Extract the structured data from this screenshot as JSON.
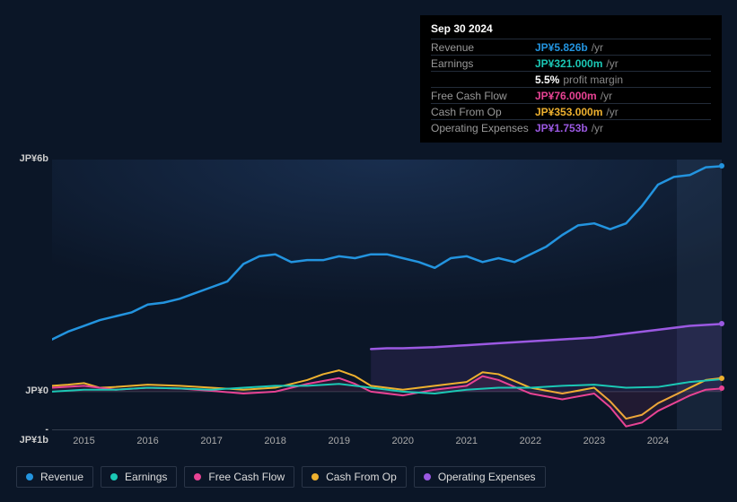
{
  "tooltip": {
    "date": "Sep 30 2024",
    "rows": [
      {
        "label": "Revenue",
        "value": "JP¥5.826b",
        "unit": "/yr",
        "color": "#2394df"
      },
      {
        "label": "Earnings",
        "value": "JP¥321.000m",
        "unit": "/yr",
        "color": "#1bc8b5"
      },
      {
        "label": "",
        "value": "5.5%",
        "unit": "profit margin",
        "color": "#ffffff"
      },
      {
        "label": "Free Cash Flow",
        "value": "JP¥76.000m",
        "unit": "/yr",
        "color": "#e84394"
      },
      {
        "label": "Cash From Op",
        "value": "JP¥353.000m",
        "unit": "/yr",
        "color": "#eeb12f"
      },
      {
        "label": "Operating Expenses",
        "value": "JP¥1.753b",
        "unit": "/yr",
        "color": "#9b59e2"
      }
    ]
  },
  "chart": {
    "type": "line",
    "y_axis": {
      "min": -1,
      "max": 6,
      "labels": [
        {
          "text": "JP¥6b",
          "value": 6
        },
        {
          "text": "JP¥0",
          "value": 0
        },
        {
          "text": "-JP¥1b",
          "value": -1
        }
      ]
    },
    "x_axis": {
      "min": 2014.5,
      "max": 2025.0,
      "ticks": [
        2015,
        2016,
        2017,
        2018,
        2019,
        2020,
        2021,
        2022,
        2023,
        2024
      ]
    },
    "background_color": "#0b1627",
    "grid_color": "#333d4d",
    "future_band_start": 2024.3,
    "series": [
      {
        "name": "Revenue",
        "color": "#2394df",
        "width": 2.5,
        "fill_opacity": 0,
        "points": [
          [
            2014.5,
            1.35
          ],
          [
            2014.75,
            1.55
          ],
          [
            2015.0,
            1.7
          ],
          [
            2015.25,
            1.85
          ],
          [
            2015.5,
            1.95
          ],
          [
            2015.75,
            2.05
          ],
          [
            2016.0,
            2.25
          ],
          [
            2016.25,
            2.3
          ],
          [
            2016.5,
            2.4
          ],
          [
            2016.75,
            2.55
          ],
          [
            2017.0,
            2.7
          ],
          [
            2017.25,
            2.85
          ],
          [
            2017.5,
            3.3
          ],
          [
            2017.75,
            3.5
          ],
          [
            2018.0,
            3.55
          ],
          [
            2018.25,
            3.35
          ],
          [
            2018.5,
            3.4
          ],
          [
            2018.75,
            3.4
          ],
          [
            2019.0,
            3.5
          ],
          [
            2019.25,
            3.45
          ],
          [
            2019.5,
            3.55
          ],
          [
            2019.75,
            3.55
          ],
          [
            2020.0,
            3.45
          ],
          [
            2020.25,
            3.35
          ],
          [
            2020.5,
            3.2
          ],
          [
            2020.75,
            3.45
          ],
          [
            2021.0,
            3.5
          ],
          [
            2021.25,
            3.35
          ],
          [
            2021.5,
            3.45
          ],
          [
            2021.75,
            3.35
          ],
          [
            2022.0,
            3.55
          ],
          [
            2022.25,
            3.75
          ],
          [
            2022.5,
            4.05
          ],
          [
            2022.75,
            4.3
          ],
          [
            2023.0,
            4.35
          ],
          [
            2023.25,
            4.2
          ],
          [
            2023.5,
            4.35
          ],
          [
            2023.75,
            4.8
          ],
          [
            2024.0,
            5.35
          ],
          [
            2024.25,
            5.55
          ],
          [
            2024.5,
            5.6
          ],
          [
            2024.75,
            5.8
          ],
          [
            2025.0,
            5.83
          ]
        ],
        "end_dot": true
      },
      {
        "name": "Operating Expenses",
        "color": "#9b59e2",
        "width": 2.5,
        "fill_opacity": 0.12,
        "start_x": 2019.5,
        "points": [
          [
            2019.5,
            1.1
          ],
          [
            2019.75,
            1.12
          ],
          [
            2020.0,
            1.12
          ],
          [
            2020.5,
            1.15
          ],
          [
            2021.0,
            1.2
          ],
          [
            2021.5,
            1.25
          ],
          [
            2022.0,
            1.3
          ],
          [
            2022.5,
            1.35
          ],
          [
            2023.0,
            1.4
          ],
          [
            2023.5,
            1.5
          ],
          [
            2024.0,
            1.6
          ],
          [
            2024.5,
            1.7
          ],
          [
            2025.0,
            1.75
          ]
        ],
        "end_dot": true
      },
      {
        "name": "Cash From Op",
        "color": "#eeb12f",
        "width": 2,
        "fill_opacity": 0,
        "points": [
          [
            2014.5,
            0.15
          ],
          [
            2014.75,
            0.18
          ],
          [
            2015.0,
            0.22
          ],
          [
            2015.25,
            0.1
          ],
          [
            2015.5,
            0.12
          ],
          [
            2016.0,
            0.18
          ],
          [
            2016.5,
            0.15
          ],
          [
            2017.0,
            0.1
          ],
          [
            2017.5,
            0.05
          ],
          [
            2018.0,
            0.1
          ],
          [
            2018.5,
            0.3
          ],
          [
            2018.75,
            0.45
          ],
          [
            2019.0,
            0.55
          ],
          [
            2019.25,
            0.4
          ],
          [
            2019.5,
            0.15
          ],
          [
            2020.0,
            0.05
          ],
          [
            2020.5,
            0.15
          ],
          [
            2021.0,
            0.25
          ],
          [
            2021.25,
            0.5
          ],
          [
            2021.5,
            0.45
          ],
          [
            2022.0,
            0.1
          ],
          [
            2022.5,
            -0.05
          ],
          [
            2023.0,
            0.1
          ],
          [
            2023.25,
            -0.25
          ],
          [
            2023.5,
            -0.7
          ],
          [
            2023.75,
            -0.6
          ],
          [
            2024.0,
            -0.3
          ],
          [
            2024.5,
            0.1
          ],
          [
            2024.75,
            0.3
          ],
          [
            2025.0,
            0.35
          ]
        ],
        "end_dot": true
      },
      {
        "name": "Free Cash Flow",
        "color": "#e84394",
        "width": 2,
        "fill_opacity": 0.1,
        "points": [
          [
            2014.5,
            0.1
          ],
          [
            2015.0,
            0.15
          ],
          [
            2015.5,
            0.05
          ],
          [
            2016.0,
            0.1
          ],
          [
            2016.5,
            0.08
          ],
          [
            2017.0,
            0.02
          ],
          [
            2017.5,
            -0.05
          ],
          [
            2018.0,
            0.0
          ],
          [
            2018.5,
            0.2
          ],
          [
            2019.0,
            0.35
          ],
          [
            2019.25,
            0.2
          ],
          [
            2019.5,
            0.0
          ],
          [
            2020.0,
            -0.1
          ],
          [
            2020.5,
            0.05
          ],
          [
            2021.0,
            0.15
          ],
          [
            2021.25,
            0.4
          ],
          [
            2021.5,
            0.3
          ],
          [
            2022.0,
            -0.05
          ],
          [
            2022.5,
            -0.2
          ],
          [
            2023.0,
            -0.05
          ],
          [
            2023.25,
            -0.4
          ],
          [
            2023.5,
            -0.9
          ],
          [
            2023.75,
            -0.8
          ],
          [
            2024.0,
            -0.5
          ],
          [
            2024.5,
            -0.1
          ],
          [
            2024.75,
            0.05
          ],
          [
            2025.0,
            0.08
          ]
        ],
        "end_dot": true
      },
      {
        "name": "Earnings",
        "color": "#1bc8b5",
        "width": 2,
        "fill_opacity": 0,
        "points": [
          [
            2014.5,
            0.0
          ],
          [
            2015.0,
            0.05
          ],
          [
            2015.5,
            0.05
          ],
          [
            2016.0,
            0.1
          ],
          [
            2016.5,
            0.08
          ],
          [
            2017.0,
            0.05
          ],
          [
            2017.5,
            0.1
          ],
          [
            2018.0,
            0.15
          ],
          [
            2018.5,
            0.15
          ],
          [
            2019.0,
            0.2
          ],
          [
            2019.5,
            0.1
          ],
          [
            2020.0,
            0.0
          ],
          [
            2020.5,
            -0.05
          ],
          [
            2021.0,
            0.05
          ],
          [
            2021.5,
            0.1
          ],
          [
            2022.0,
            0.1
          ],
          [
            2022.5,
            0.15
          ],
          [
            2023.0,
            0.18
          ],
          [
            2023.5,
            0.1
          ],
          [
            2024.0,
            0.12
          ],
          [
            2024.5,
            0.25
          ],
          [
            2025.0,
            0.32
          ]
        ],
        "end_dot": false
      }
    ],
    "legend_order": [
      "Revenue",
      "Earnings",
      "Free Cash Flow",
      "Cash From Op",
      "Operating Expenses"
    ]
  }
}
